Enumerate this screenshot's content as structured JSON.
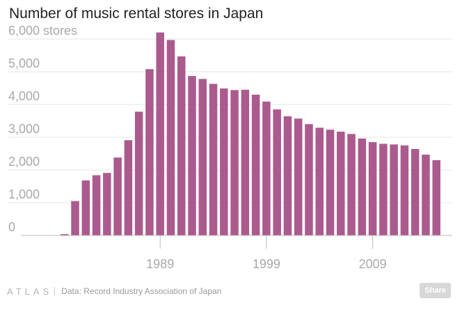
{
  "title": "Number of music rental stores in Japan",
  "footer": {
    "logo": "ATLAS",
    "source": "Data: Record Industry Association of Japan"
  },
  "share_label": "Share",
  "colors": {
    "bar": "#ab5a8e",
    "grid": "#e6e6e6",
    "axis": "#bbbbbb",
    "tick_text": "#a9a9a9"
  },
  "chart_data": {
    "type": "bar",
    "title": "Number of music rental stores in Japan",
    "xlabel": "",
    "ylabel": "",
    "y_unit_label": "6,000 stores",
    "ylim": [
      0,
      6000
    ],
    "yticks": [
      0,
      1000,
      2000,
      3000,
      4000,
      5000,
      6000
    ],
    "ytick_labels": [
      "0",
      "1,000",
      "2,000",
      "3,000",
      "4,000",
      "5,000",
      "6,000 stores"
    ],
    "xtick_labels": [
      "1989",
      "1999",
      "2009"
    ],
    "grid": true,
    "categories": [
      "1979",
      "1980",
      "1981",
      "1982",
      "1983",
      "1984",
      "1985",
      "1986",
      "1987",
      "1988",
      "1989",
      "1990",
      "1991",
      "1992",
      "1993",
      "1994",
      "1995",
      "1996",
      "1997",
      "1998",
      "1999",
      "2000",
      "2001",
      "2002",
      "2003",
      "2004",
      "2005",
      "2006",
      "2007",
      "2008",
      "2009",
      "2010",
      "2011",
      "2012",
      "2013",
      "2014",
      "2015"
    ],
    "values": [
      0,
      40,
      1050,
      1680,
      1840,
      1910,
      2380,
      2910,
      3780,
      5080,
      6200,
      5970,
      5470,
      4870,
      4780,
      4630,
      4490,
      4440,
      4450,
      4300,
      4090,
      3850,
      3640,
      3570,
      3400,
      3290,
      3230,
      3170,
      3100,
      2960,
      2850,
      2800,
      2780,
      2750,
      2640,
      2470,
      2300
    ]
  }
}
